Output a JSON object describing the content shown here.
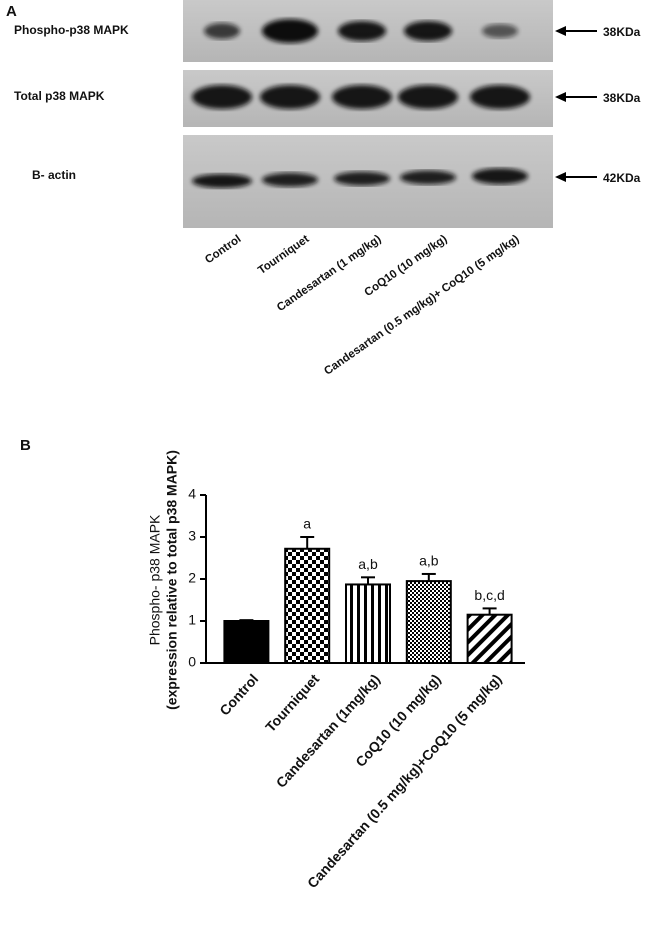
{
  "blot": {
    "panel_label": "A",
    "rows": [
      {
        "label": "Phospho-p38 MAPK",
        "size": "38KDa"
      },
      {
        "label": "Total p38 MAPK",
        "size": "38KDa"
      },
      {
        "label": "B- actin",
        "size": "42KDa"
      }
    ],
    "lanes": [
      "Control",
      "Tourniquet",
      "Candesartan  (1 mg/kg)",
      "CoQ10  (10 mg/kg)",
      "Candesartan  (0.5 mg/kg)+ CoQ10  (5 mg/kg)"
    ]
  },
  "chart_data": {
    "type": "bar",
    "panel_label": "B",
    "y_label": [
      "Phospho- p38 MAPK",
      "(expression relative to total p38 MAPK)"
    ],
    "categories": [
      "Control",
      "Tourniquet",
      "Candesartan (1mg/kg)",
      "CoQ10 (10 mg/kg)",
      "Candesartan (0.5 mg/kg)+CoQ10 (5 mg/kg)"
    ],
    "values": [
      1.0,
      2.72,
      1.87,
      1.95,
      1.15
    ],
    "errors": [
      0.02,
      0.28,
      0.17,
      0.17,
      0.15
    ],
    "annotations": [
      null,
      "a",
      "a,b",
      "a,b",
      "b,c,d"
    ],
    "patterns": [
      "solid",
      "checker",
      "vertical",
      "dots",
      "diagonal"
    ],
    "color": "#000000",
    "ylim": [
      0,
      4
    ],
    "yticks": [
      0,
      1,
      2,
      3,
      4
    ],
    "grid": false
  }
}
